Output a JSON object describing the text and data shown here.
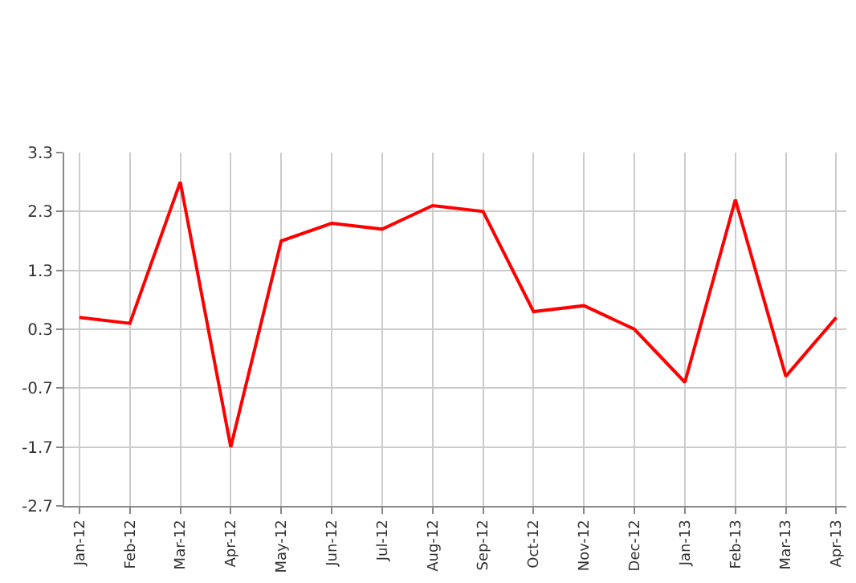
{
  "chart_data": {
    "type": "line",
    "categories": [
      "Jan-12",
      "Feb-12",
      "Mar-12",
      "Apr-12",
      "May-12",
      "Jun-12",
      "Jul-12",
      "Aug-12",
      "Sep-12",
      "Oct-12",
      "Nov-12",
      "Dec-12",
      "Jan-13",
      "Feb-13",
      "Mar-13",
      "Apr-13"
    ],
    "series": [
      {
        "color": "#ff0000",
        "values": [
          0.5,
          0.4,
          2.8,
          -1.7,
          1.8,
          2.1,
          2.0,
          2.4,
          2.3,
          0.6,
          0.7,
          0.3,
          -0.6,
          2.5,
          -0.5,
          0.5
        ]
      }
    ],
    "ylim": [
      -2.7,
      3.3
    ],
    "yticks": [
      -2.7,
      -1.7,
      -0.7,
      0.3,
      1.3,
      2.3,
      3.3
    ],
    "grid": true,
    "marker": "none",
    "line_style": "solid",
    "legend": false
  }
}
